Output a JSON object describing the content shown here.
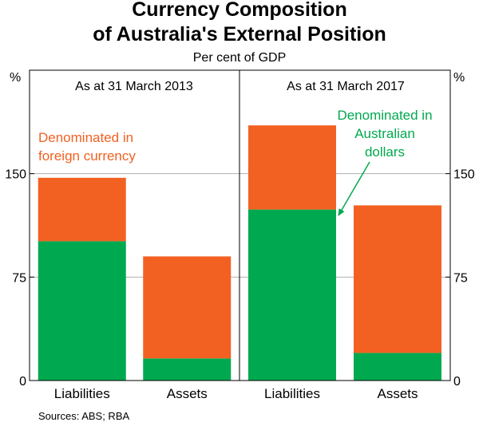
{
  "chart_data": {
    "type": "bar",
    "stacked": true,
    "title_line1": "Currency Composition",
    "title_line2": "of Australia's External Position",
    "subtitle": "Per cent of GDP",
    "y_unit": "%",
    "ylim": [
      0,
      225
    ],
    "yticks": [
      0,
      75,
      150
    ],
    "grid": true,
    "categories": [
      "Liabilities",
      "Assets"
    ],
    "colors": {
      "aud": "#00a94f",
      "foreign": "#f26122"
    },
    "panels": [
      {
        "title": "As at 31 March 2013",
        "series": [
          {
            "key": "aud",
            "values": [
              101,
              16
            ]
          },
          {
            "key": "foreign",
            "values": [
              46,
              74
            ]
          }
        ]
      },
      {
        "title": "As at 31 March 2017",
        "series": [
          {
            "key": "aud",
            "values": [
              124,
              20
            ]
          },
          {
            "key": "foreign",
            "values": [
              61,
              107
            ]
          }
        ]
      }
    ],
    "annotations": {
      "foreign": [
        "Denominated in",
        "foreign currency"
      ],
      "aud": [
        "Denominated in",
        "Australian",
        "dollars"
      ]
    },
    "source": "Sources: ABS; RBA"
  }
}
